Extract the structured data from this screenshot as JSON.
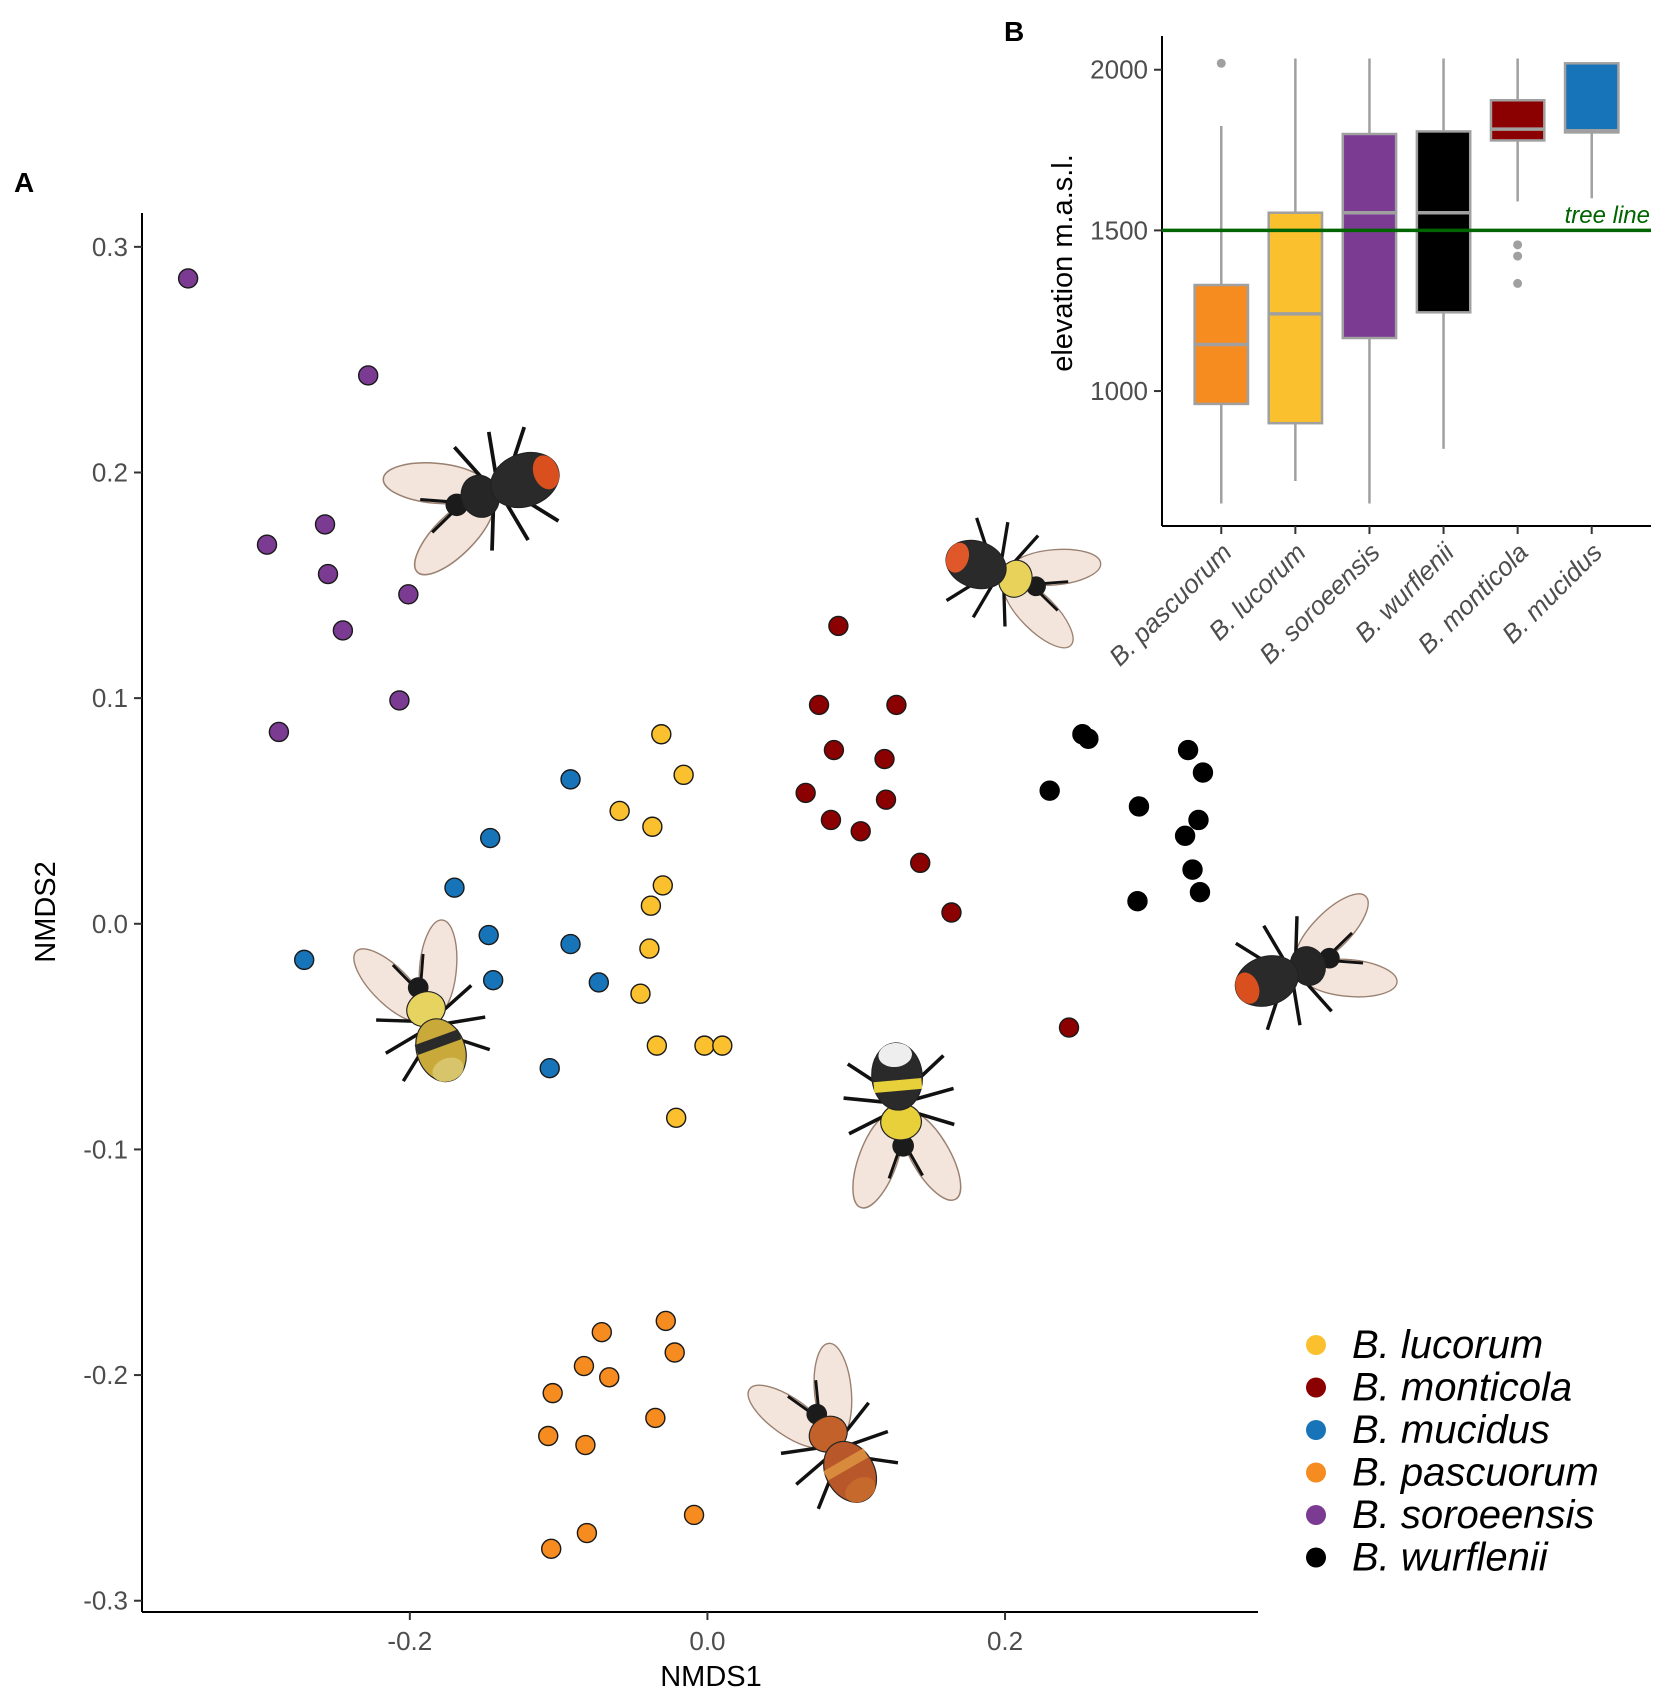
{
  "chart_data": [
    {
      "panel": "A",
      "type": "scatter",
      "xlabel": "NMDS1",
      "ylabel": "NMDS2",
      "xlim": [
        -0.38,
        0.37
      ],
      "ylim": [
        -0.305,
        0.315
      ],
      "xticks": [
        -0.2,
        0.0,
        0.2
      ],
      "xtick_labels": [
        "-0.2",
        "0.0",
        "0.2"
      ],
      "yticks": [
        -0.3,
        -0.2,
        -0.1,
        0.0,
        0.1,
        0.2,
        0.3
      ],
      "ytick_labels": [
        "-0.3",
        "-0.2",
        "-0.1",
        "0.0",
        "0.1",
        "0.2",
        "0.3"
      ],
      "legend_position": "bottom-right",
      "series": [
        {
          "name": "B. lucorum",
          "color": "#FBC02D",
          "outline": true,
          "points": [
            [
              -0.031,
              0.084
            ],
            [
              -0.016,
              0.066
            ],
            [
              -0.059,
              0.05
            ],
            [
              -0.037,
              0.043
            ],
            [
              -0.03,
              0.017
            ],
            [
              -0.038,
              0.008
            ],
            [
              -0.039,
              -0.011
            ],
            [
              -0.045,
              -0.031
            ],
            [
              -0.034,
              -0.054
            ],
            [
              -0.002,
              -0.054
            ],
            [
              0.01,
              -0.054
            ],
            [
              -0.021,
              -0.086
            ]
          ]
        },
        {
          "name": "B. monticola",
          "color": "#8B0000",
          "outline": true,
          "points": [
            [
              0.088,
              0.132
            ],
            [
              0.075,
              0.097
            ],
            [
              0.127,
              0.097
            ],
            [
              0.085,
              0.077
            ],
            [
              0.119,
              0.073
            ],
            [
              0.066,
              0.058
            ],
            [
              0.12,
              0.055
            ],
            [
              0.083,
              0.046
            ],
            [
              0.103,
              0.041
            ],
            [
              0.143,
              0.027
            ],
            [
              0.164,
              0.005
            ],
            [
              0.243,
              -0.046
            ]
          ]
        },
        {
          "name": "B. mucidus",
          "color": "#1874B8",
          "outline": true,
          "points": [
            [
              -0.092,
              0.064
            ],
            [
              -0.146,
              0.038
            ],
            [
              -0.17,
              0.016
            ],
            [
              -0.147,
              -0.005
            ],
            [
              -0.271,
              -0.016
            ],
            [
              -0.092,
              -0.009
            ],
            [
              -0.073,
              -0.026
            ],
            [
              -0.144,
              -0.025
            ],
            [
              -0.106,
              -0.064
            ]
          ]
        },
        {
          "name": "B. pascuorum",
          "color": "#F68B1F",
          "outline": true,
          "points": [
            [
              -0.028,
              -0.176
            ],
            [
              -0.071,
              -0.181
            ],
            [
              -0.022,
              -0.19
            ],
            [
              -0.083,
              -0.196
            ],
            [
              -0.066,
              -0.201
            ],
            [
              -0.104,
              -0.208
            ],
            [
              -0.035,
              -0.219
            ],
            [
              -0.107,
              -0.227
            ],
            [
              -0.082,
              -0.231
            ],
            [
              -0.009,
              -0.262
            ],
            [
              -0.081,
              -0.27
            ],
            [
              -0.105,
              -0.277
            ]
          ]
        },
        {
          "name": "B. soroeensis",
          "color": "#7B3B93",
          "outline": true,
          "points": [
            [
              -0.349,
              0.286
            ],
            [
              -0.228,
              0.243
            ],
            [
              -0.257,
              0.177
            ],
            [
              -0.296,
              0.168
            ],
            [
              -0.255,
              0.155
            ],
            [
              -0.201,
              0.146
            ],
            [
              -0.245,
              0.13
            ],
            [
              -0.207,
              0.099
            ],
            [
              -0.288,
              0.085
            ]
          ]
        },
        {
          "name": "B. wurflenii",
          "color": "#000000",
          "outline": false,
          "points": [
            [
              0.252,
              0.084
            ],
            [
              0.256,
              0.082
            ],
            [
              0.323,
              0.077
            ],
            [
              0.333,
              0.067
            ],
            [
              0.23,
              0.059
            ],
            [
              0.29,
              0.052
            ],
            [
              0.33,
              0.046
            ],
            [
              0.321,
              0.039
            ],
            [
              0.326,
              0.024
            ],
            [
              0.331,
              0.014
            ],
            [
              0.289,
              0.01
            ]
          ]
        }
      ],
      "legend": [
        "B. lucorum",
        "B. monticola",
        "B. mucidus",
        "B. pascuorum",
        "B. soroeensis",
        "B. wurflenii"
      ]
    },
    {
      "panel": "B",
      "type": "box",
      "ylabel": "elevation m.a.s.l.",
      "ylim": [
        580,
        2105
      ],
      "yticks": [
        1000,
        1500,
        2000
      ],
      "ytick_labels": [
        "1000",
        "1500",
        "2000"
      ],
      "reference_line": {
        "value": 1500,
        "label": "tree line",
        "color": "#006400"
      },
      "categories": [
        "B. pascuorum",
        "B. lucorum",
        "B. soroeensis",
        "B. wurflenii",
        "B. monticola",
        "B. mucidus"
      ],
      "boxes": [
        {
          "name": "B. pascuorum",
          "color": "#F68B1F",
          "whisker_low": 650,
          "q1": 960,
          "median": 1145,
          "q3": 1330,
          "whisker_high": 1825,
          "outliers": [
            2020
          ]
        },
        {
          "name": "B. lucorum",
          "color": "#FBC02D",
          "whisker_low": 720,
          "q1": 900,
          "median": 1240,
          "q3": 1555,
          "whisker_high": 2035,
          "outliers": []
        },
        {
          "name": "B. soroeensis",
          "color": "#7B3B93",
          "whisker_low": 650,
          "q1": 1165,
          "median": 1555,
          "q3": 1800,
          "whisker_high": 2035,
          "outliers": []
        },
        {
          "name": "B. wurflenii",
          "color": "#000000",
          "whisker_low": 820,
          "q1": 1245,
          "median": 1555,
          "q3": 1808,
          "whisker_high": 2035,
          "outliers": []
        },
        {
          "name": "B. monticola",
          "color": "#8B0000",
          "whisker_low": 1590,
          "q1": 1780,
          "median": 1815,
          "q3": 1905,
          "whisker_high": 2035,
          "outliers": [
            1455,
            1420,
            1335
          ]
        },
        {
          "name": "B. mucidus",
          "color": "#1874B8",
          "whisker_low": 1600,
          "q1": 1805,
          "median": 1810,
          "q3": 2020,
          "whisker_high": 2020,
          "outliers": []
        }
      ]
    }
  ]
}
